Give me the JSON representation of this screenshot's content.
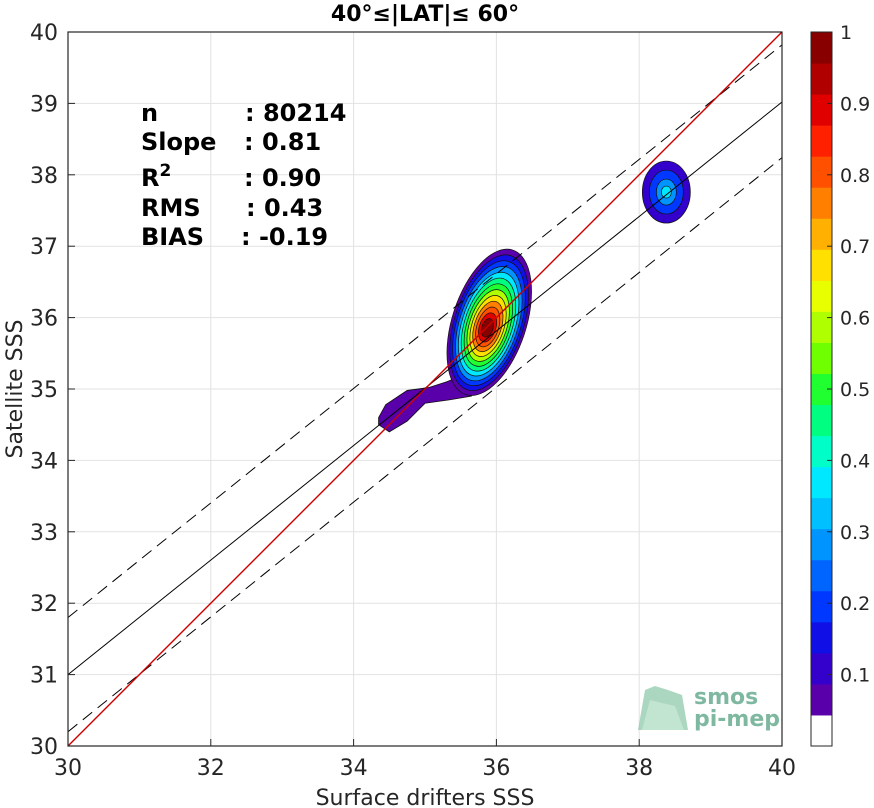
{
  "chart_data": {
    "type": "contour-density-scatter",
    "title": "40°≤|LAT|≤ 60°",
    "xlabel": "Surface drifters SSS",
    "ylabel": "Satellite SSS",
    "xlim": [
      30,
      40
    ],
    "ylim": [
      30,
      40
    ],
    "x_ticks": [
      "30",
      "32",
      "34",
      "36",
      "38",
      "40"
    ],
    "y_ticks": [
      "30",
      "31",
      "32",
      "33",
      "34",
      "35",
      "36",
      "37",
      "38",
      "39",
      "40"
    ],
    "grid": true,
    "stats": [
      {
        "label": "n",
        "value": ": 80214"
      },
      {
        "label": "Slope",
        "value": ": 0.81"
      },
      {
        "label": "R",
        "sup": "2",
        "value": ": 0.90"
      },
      {
        "label": "RMS",
        "value": ": 0.43"
      },
      {
        "label": "BIAS",
        "value": ": -0.19"
      }
    ],
    "lines": {
      "one_to_one": {
        "x": [
          30,
          40
        ],
        "y": [
          30,
          40
        ],
        "color": "#cc0000"
      },
      "regression": {
        "x": [
          30,
          40
        ],
        "y": [
          31.0,
          39.02
        ],
        "color": "#000000"
      },
      "upper_bound": {
        "x": [
          30,
          40
        ],
        "y": [
          31.8,
          39.82
        ],
        "dashed": true
      },
      "lower_bound": {
        "x": [
          30,
          40
        ],
        "y": [
          30.2,
          38.24
        ],
        "dashed": true
      }
    },
    "density_peaks": [
      {
        "x": 35.9,
        "y": 35.85,
        "peak": 1.0
      },
      {
        "x": 38.38,
        "y": 37.8,
        "peak": 0.35
      },
      {
        "x": 34.7,
        "y": 34.7,
        "peak": 0.08
      }
    ],
    "colorbar": {
      "range": [
        0,
        1
      ],
      "ticks": [
        "0.1",
        "0.2",
        "0.3",
        "0.4",
        "0.5",
        "0.6",
        "0.7",
        "0.8",
        "0.9",
        "1"
      ],
      "colors": [
        "#ffffff",
        "#5a00aa",
        "#3300cc",
        "#1010e6",
        "#0038ff",
        "#0064ff",
        "#0094ff",
        "#00c0ff",
        "#00e8ff",
        "#00ffc8",
        "#00ff80",
        "#20ff30",
        "#70ff00",
        "#b0ff00",
        "#e8ff00",
        "#ffe000",
        "#ffb000",
        "#ff8000",
        "#ff5000",
        "#ff2000",
        "#e00000",
        "#b00000",
        "#880000"
      ]
    }
  },
  "logo": {
    "line1": "smos",
    "line2": "pi-mep"
  }
}
